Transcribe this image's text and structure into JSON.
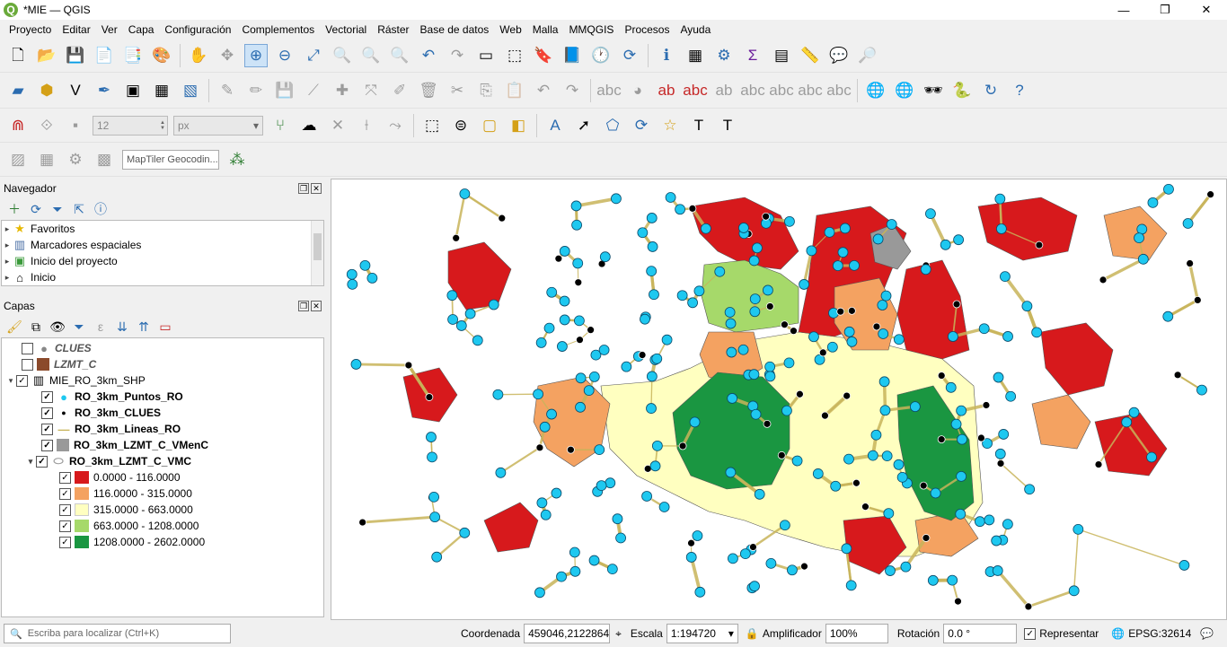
{
  "window": {
    "title": "*MIE — QGIS",
    "app_icon": "qgis-logo-icon",
    "controls": [
      "minimize",
      "maximize",
      "close"
    ]
  },
  "menu": [
    "Proyecto",
    "Editar",
    "Ver",
    "Capa",
    "Configuración",
    "Complementos",
    "Vectorial",
    "Ráster",
    "Base de datos",
    "Web",
    "Malla",
    "MMQGIS",
    "Procesos",
    "Ayuda"
  ],
  "toolbar3": {
    "size_value": "12",
    "unit_value": "px"
  },
  "toolbar4": {
    "geocoder_placeholder": "MapTiler Geocodin..."
  },
  "browser": {
    "title": "Navegador",
    "items": [
      {
        "label": "Favoritos",
        "icon": "star-icon"
      },
      {
        "label": "Marcadores espaciales",
        "icon": "bookmark-icon"
      },
      {
        "label": "Inicio del proyecto",
        "icon": "project-home-icon"
      },
      {
        "label": "Inicio",
        "icon": "home-icon"
      }
    ]
  },
  "layers": {
    "title": "Capas",
    "items": [
      {
        "label": "CLUES",
        "checked": false,
        "italic": true
      },
      {
        "label": "LZMT_C",
        "checked": false,
        "italic": true
      },
      {
        "label": "MIE_RO_3km_SHP",
        "checked": true,
        "group": true
      },
      {
        "label": "RO_3km_Puntos_RO",
        "checked": true
      },
      {
        "label": "RO_3km_CLUES",
        "checked": true
      },
      {
        "label": "RO_3km_Lineas_RO",
        "checked": true
      },
      {
        "label": "RO_3km_LZMT_C_VMenC",
        "checked": true
      },
      {
        "label": "RO_3km_LZMT_C_VMC",
        "checked": true
      }
    ],
    "legend": [
      {
        "label": "0.0000 - 116.0000",
        "color": "#d7191c"
      },
      {
        "label": "116.0000 - 315.0000",
        "color": "#f4a261"
      },
      {
        "label": "315.0000 - 663.0000",
        "color": "#ffffc0"
      },
      {
        "label": "663.0000 - 1208.0000",
        "color": "#a6d96a"
      },
      {
        "label": "1208.0000 - 2602.0000",
        "color": "#1a9641"
      }
    ],
    "symbol_colors": {
      "puntos": "#1ec8f0",
      "clues": "#000000",
      "lineas": "#c8b45a",
      "vmenc": "#999999",
      "lzmt_c": "#8b4a2b",
      "clues_gray": "#888888"
    }
  },
  "status": {
    "locator_placeholder": "Escriba para localizar (Ctrl+K)",
    "coord_label": "Coordenada",
    "coord_value": "459046,2122864",
    "scale_label": "Escala",
    "scale_value": "1:194720",
    "magnifier_label": "Amplificador",
    "magnifier_value": "100%",
    "rotation_label": "Rotación",
    "rotation_value": "0.0 °",
    "render_label": "Representar",
    "crs": "EPSG:32614"
  },
  "colors": {
    "map_red": "#d7191c",
    "map_orange": "#f4a261",
    "map_yellow": "#ffffc0",
    "map_lightgreen": "#a6d96a",
    "map_green": "#1a9641",
    "point_cyan": "#1ec8f0",
    "line_tan": "#c8b45a"
  }
}
